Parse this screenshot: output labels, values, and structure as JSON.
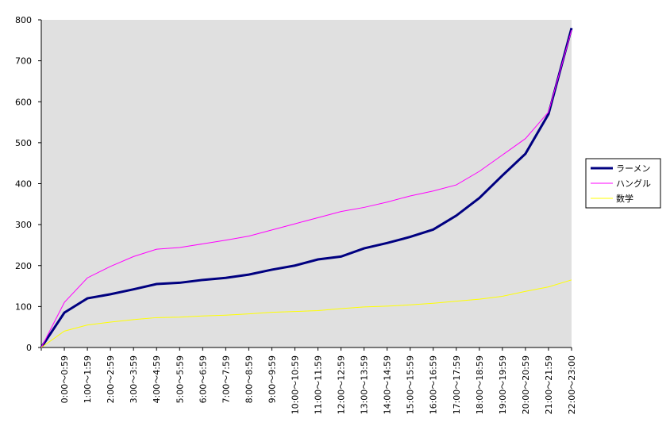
{
  "chart_data": {
    "type": "line",
    "categories": [
      null,
      "0:00～0:59",
      "1:00～1:59",
      "2:00～2:59",
      "3:00～3:59",
      "4:00～4:59",
      "5:00～5:59",
      "6:00～6:59",
      "7:00～7:59",
      "8:00～8:59",
      "9:00～9:59",
      "10:00～10:59",
      "11:00～11:59",
      "12:00～12:59",
      "13:00～13:59",
      "14:00～14:59",
      "15:00～15:59",
      "16:00～16:59",
      "17:00～17:59",
      "18:00～18:59",
      "19:00～19:59",
      "20:00～20:59",
      "21:00～21:59",
      "22:00～23:00"
    ],
    "series": [
      {
        "name": "ラーメン",
        "color": "#000080",
        "width": 3,
        "values": [
          0,
          85,
          120,
          130,
          142,
          155,
          158,
          165,
          170,
          178,
          190,
          200,
          215,
          222,
          242,
          255,
          270,
          288,
          322,
          365,
          420,
          473,
          570,
          780
        ]
      },
      {
        "name": "ハングル",
        "color": "#ff00ff",
        "width": 1,
        "values": [
          0,
          110,
          170,
          198,
          222,
          240,
          244,
          253,
          262,
          272,
          287,
          302,
          317,
          332,
          342,
          355,
          370,
          382,
          397,
          430,
          470,
          510,
          575,
          775
        ]
      },
      {
        "name": "数学",
        "color": "#ffff00",
        "width": 1,
        "values": [
          0,
          40,
          55,
          62,
          68,
          73,
          74,
          77,
          79,
          82,
          86,
          88,
          90,
          95,
          99,
          101,
          104,
          108,
          113,
          118,
          125,
          137,
          148,
          165
        ]
      }
    ],
    "ylim": [
      0,
      800
    ],
    "yticks": [
      0,
      100,
      200,
      300,
      400,
      500,
      600,
      700,
      800
    ],
    "grid": false,
    "legend": "right"
  }
}
